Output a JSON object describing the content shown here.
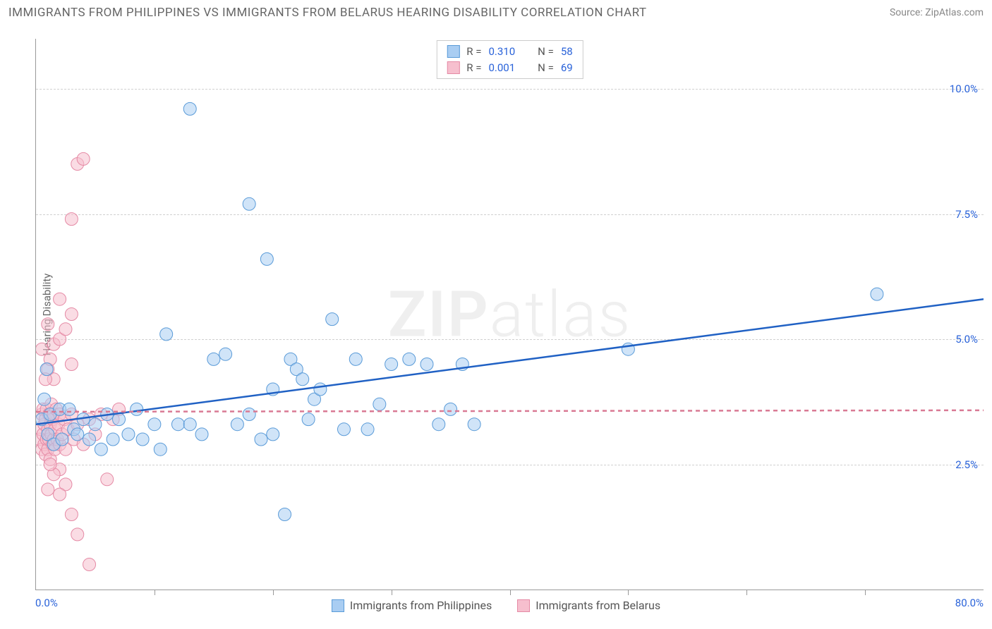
{
  "header": {
    "title": "IMMIGRANTS FROM PHILIPPINES VS IMMIGRANTS FROM BELARUS HEARING DISABILITY CORRELATION CHART",
    "source": "Source: ZipAtlas.com"
  },
  "watermark": {
    "bold_part": "ZIP",
    "light_part": "atlas"
  },
  "chart": {
    "type": "scatter",
    "background_color": "#ffffff",
    "grid_color": "#d0d0d0",
    "axis_color": "#999999",
    "tick_label_color": "#2962d9",
    "ylabel": "Hearing Disability",
    "ylabel_color": "#666666",
    "label_fontsize": 15,
    "xlim": [
      0,
      80
    ],
    "ylim": [
      0,
      11
    ],
    "ytick_positions": [
      2.5,
      5.0,
      7.5,
      10.0
    ],
    "ytick_labels": [
      "2.5%",
      "5.0%",
      "7.5%",
      "10.0%"
    ],
    "xtick_positions": [
      10,
      20,
      30,
      40,
      50,
      60,
      70
    ],
    "xmin_label": "0.0%",
    "xmax_label": "80.0%",
    "marker_radius": 9,
    "marker_opacity": 0.55,
    "series": [
      {
        "name": "Immigrants from Philippines",
        "fill_color": "#a9cdf2",
        "stroke_color": "#5a9bd8",
        "trend_color": "#2061c4",
        "trend_style": "solid",
        "trend_start": [
          0,
          3.3
        ],
        "trend_end": [
          80,
          5.8
        ],
        "stats": {
          "R": "0.310",
          "N": "58"
        },
        "points": [
          [
            0.5,
            3.4
          ],
          [
            1.0,
            3.1
          ],
          [
            1.2,
            3.5
          ],
          [
            1.5,
            2.9
          ],
          [
            2.0,
            3.6
          ],
          [
            2.2,
            3.0
          ],
          [
            2.8,
            3.6
          ],
          [
            3.2,
            3.2
          ],
          [
            3.5,
            3.1
          ],
          [
            4.0,
            3.4
          ],
          [
            4.5,
            3.0
          ],
          [
            5.0,
            3.3
          ],
          [
            5.5,
            2.8
          ],
          [
            6.0,
            3.5
          ],
          [
            6.5,
            3.0
          ],
          [
            7.0,
            3.4
          ],
          [
            7.8,
            3.1
          ],
          [
            8.5,
            3.6
          ],
          [
            9.0,
            3.0
          ],
          [
            10.0,
            3.3
          ],
          [
            10.5,
            2.8
          ],
          [
            11.0,
            5.1
          ],
          [
            12.0,
            3.3
          ],
          [
            13.0,
            3.3
          ],
          [
            14.0,
            3.1
          ],
          [
            15.0,
            4.6
          ],
          [
            16.0,
            4.7
          ],
          [
            17.0,
            3.3
          ],
          [
            18.0,
            3.5
          ],
          [
            19.0,
            3.0
          ],
          [
            19.5,
            6.6
          ],
          [
            20.0,
            4.0
          ],
          [
            20.0,
            3.1
          ],
          [
            21.0,
            1.5
          ],
          [
            21.5,
            4.6
          ],
          [
            22.0,
            4.4
          ],
          [
            22.5,
            4.2
          ],
          [
            23.0,
            3.4
          ],
          [
            23.5,
            3.8
          ],
          [
            24.0,
            4.0
          ],
          [
            25.0,
            5.4
          ],
          [
            26.0,
            3.2
          ],
          [
            27.0,
            4.6
          ],
          [
            28.0,
            3.2
          ],
          [
            29.0,
            3.7
          ],
          [
            30.0,
            4.5
          ],
          [
            31.5,
            4.6
          ],
          [
            33.0,
            4.5
          ],
          [
            34.0,
            3.3
          ],
          [
            35.0,
            3.6
          ],
          [
            36.0,
            4.5
          ],
          [
            37.0,
            3.3
          ],
          [
            13.0,
            9.6
          ],
          [
            18.0,
            7.7
          ],
          [
            50.0,
            4.8
          ],
          [
            71.0,
            5.9
          ],
          [
            0.7,
            3.8
          ],
          [
            0.9,
            4.4
          ]
        ]
      },
      {
        "name": "Immigrants from Belarus",
        "fill_color": "#f6bfce",
        "stroke_color": "#e58aa5",
        "trend_color": "#d97a94",
        "trend_style": "dashed",
        "trend_start": [
          0,
          3.55
        ],
        "trend_end": [
          80,
          3.58
        ],
        "stats": {
          "R": "0.001",
          "N": "69"
        },
        "points": [
          [
            0.3,
            3.0
          ],
          [
            0.4,
            3.2
          ],
          [
            0.5,
            3.5
          ],
          [
            0.5,
            2.8
          ],
          [
            0.6,
            3.1
          ],
          [
            0.6,
            3.6
          ],
          [
            0.7,
            2.9
          ],
          [
            0.7,
            3.3
          ],
          [
            0.8,
            3.4
          ],
          [
            0.8,
            2.7
          ],
          [
            0.9,
            3.0
          ],
          [
            0.9,
            3.6
          ],
          [
            1.0,
            3.2
          ],
          [
            1.0,
            2.8
          ],
          [
            1.1,
            3.5
          ],
          [
            1.1,
            3.0
          ],
          [
            1.2,
            3.3
          ],
          [
            1.2,
            2.6
          ],
          [
            1.3,
            3.1
          ],
          [
            1.3,
            3.7
          ],
          [
            1.4,
            2.9
          ],
          [
            1.4,
            3.4
          ],
          [
            1.5,
            3.0
          ],
          [
            1.5,
            3.5
          ],
          [
            1.6,
            2.8
          ],
          [
            1.6,
            3.2
          ],
          [
            1.7,
            3.6
          ],
          [
            1.8,
            3.0
          ],
          [
            1.9,
            3.3
          ],
          [
            2.0,
            2.9
          ],
          [
            2.0,
            3.5
          ],
          [
            2.2,
            3.1
          ],
          [
            2.4,
            3.4
          ],
          [
            2.5,
            2.8
          ],
          [
            2.7,
            3.2
          ],
          [
            3.0,
            3.5
          ],
          [
            3.2,
            3.0
          ],
          [
            3.5,
            3.3
          ],
          [
            4.0,
            2.9
          ],
          [
            4.5,
            3.4
          ],
          [
            5.0,
            3.1
          ],
          [
            5.5,
            3.5
          ],
          [
            6.0,
            2.2
          ],
          [
            6.5,
            3.4
          ],
          [
            7.0,
            3.6
          ],
          [
            1.0,
            4.4
          ],
          [
            1.2,
            4.6
          ],
          [
            1.5,
            4.9
          ],
          [
            2.0,
            5.0
          ],
          [
            2.5,
            5.2
          ],
          [
            3.0,
            5.5
          ],
          [
            2.0,
            5.8
          ],
          [
            3.0,
            4.5
          ],
          [
            1.0,
            5.3
          ],
          [
            1.5,
            4.2
          ],
          [
            2.0,
            2.4
          ],
          [
            2.5,
            2.1
          ],
          [
            3.0,
            1.5
          ],
          [
            3.5,
            1.1
          ],
          [
            4.5,
            0.5
          ],
          [
            1.5,
            2.3
          ],
          [
            2.0,
            1.9
          ],
          [
            3.0,
            7.4
          ],
          [
            3.5,
            8.5
          ],
          [
            4.0,
            8.6
          ],
          [
            1.0,
            2.0
          ],
          [
            0.5,
            4.8
          ],
          [
            0.8,
            4.2
          ],
          [
            1.2,
            2.5
          ]
        ]
      }
    ]
  },
  "bottom_legend": {
    "items": [
      {
        "label": "Immigrants from Philippines",
        "fill": "#a9cdf2",
        "stroke": "#5a9bd8"
      },
      {
        "label": "Immigrants from Belarus",
        "fill": "#f6bfce",
        "stroke": "#e58aa5"
      }
    ]
  }
}
